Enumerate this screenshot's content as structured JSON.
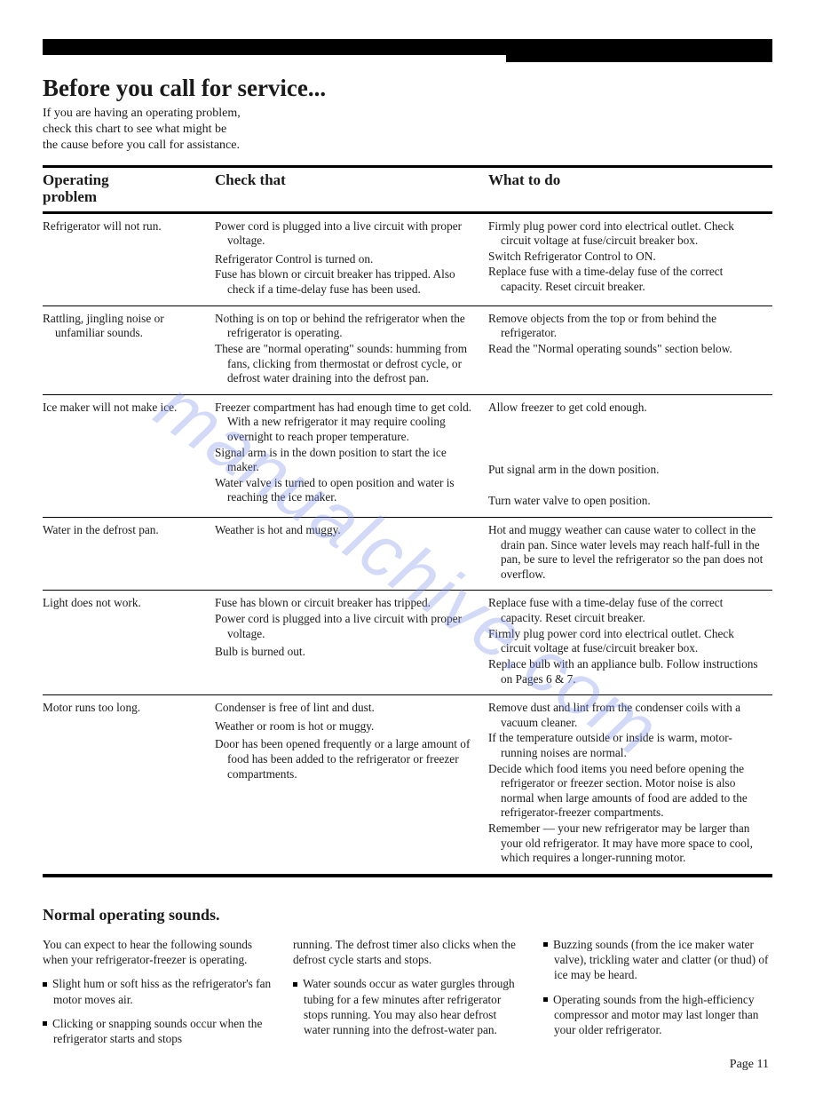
{
  "title": "Before you call for service...",
  "intro_lines": [
    "If you are having an operating problem,",
    "check this chart to see what might be",
    "the cause before you call for assistance."
  ],
  "headers": {
    "problem": "Operating\nproblem",
    "check": "Check that",
    "what": "What to do"
  },
  "rows": [
    {
      "problem": "Refrigerator will not run.",
      "checks": [
        "Power cord is plugged into a live circuit with proper voltage.",
        "Refrigerator Control is turned on.",
        "Fuse has blown or circuit breaker has tripped.  Also check if a time-delay fuse has been used."
      ],
      "whats": [
        "Firmly plug power cord into electrical outlet. Check circuit voltage at fuse/circuit breaker box.",
        "Switch Refrigerator Control to ON.",
        "Replace fuse with a time-delay fuse of the correct capacity.  Reset circuit breaker."
      ]
    },
    {
      "problem": "Rattling, jingling noise or unfamiliar sounds.",
      "checks": [
        "Nothing is on top or behind the refrigerator when the refrigerator is operating.",
        "These are \"normal operating\" sounds: humming from fans, clicking from thermostat or defrost cycle, or defrost water draining into the defrost pan."
      ],
      "whats": [
        "Remove objects from the top or from behind the refrigerator.",
        "Read the \"Normal operating sounds\" section below."
      ]
    },
    {
      "problem": "Ice maker will not make ice.",
      "checks": [
        "Freezer compartment has had enough time to get cold.  With a new refrigerator it may require cooling overnight to reach proper temperature.",
        "Signal arm is in the down position to start the ice maker.",
        "Water valve is turned to open position and water is reaching the ice maker."
      ],
      "whats": [
        "Allow freezer to get cold enough.",
        "",
        "",
        "",
        "Put signal arm in the down position.",
        "",
        "Turn water valve to open position."
      ]
    },
    {
      "problem": "Water in the defrost pan.",
      "checks": [
        "Weather is hot and muggy."
      ],
      "whats": [
        "Hot and muggy weather can cause water to collect in the drain pan. Since water levels may reach half-full in the pan, be sure to level the refrigerator so the pan does not overflow."
      ]
    },
    {
      "problem": "Light does not work.",
      "checks": [
        "Fuse has blown or circuit breaker has tripped.",
        "Power cord is plugged into a live circuit with proper voltage.",
        "Bulb is burned out."
      ],
      "whats": [
        "Replace fuse with a time-delay fuse of the correct capacity. Reset circuit breaker.",
        "Firmly plug power cord into electrical outlet. Check circuit voltage at fuse/circuit breaker box.",
        "Replace bulb with an appliance bulb.  Follow instructions on Pages 6 & 7."
      ]
    },
    {
      "problem": "Motor runs too long.",
      "checks": [
        "Condenser is free of lint and dust.",
        "Weather or room is hot or muggy.",
        "Door has been opened frequently or a large amount of food has been added to the refrigerator or freezer compartments."
      ],
      "whats": [
        "Remove dust and lint from the condenser coils with a vacuum cleaner.",
        "If the temperature outside or inside is warm, motor-running noises are normal.",
        "Decide which food items you need before opening the refrigerator or freezer section. Motor noise is also normal when large amounts of food are added to the refrigerator-freezer compartments.",
        "Remember — your new refrigerator may be larger than your old refrigerator. It may have more space to cool, which requires a longer-running motor."
      ]
    }
  ],
  "sounds": {
    "title": "Normal operating sounds.",
    "col1_intro": "You can expect to hear the following sounds when your refrigerator-freezer is operating.",
    "col1_b1": "Slight hum or soft hiss as the refrigerator's fan motor moves air.",
    "col1_b2": "Clicking or snapping sounds occur when the refrigerator starts and stops",
    "col2_cont": "running.  The defrost timer also clicks when the defrost cycle starts and stops.",
    "col2_b1": "Water sounds occur as water gurgles through tubing for a few minutes after refrigerator stops running.  You may also hear defrost water running into the defrost-water pan.",
    "col3_b1": "Buzzing sounds (from the ice maker water valve), trickling water and clatter (or thud) of ice may be heard.",
    "col3_b2": "Operating sounds from the high-efficiency compressor and motor may last longer than your older refrigerator."
  },
  "page_number": "Page 11",
  "watermark": "manualchive.com"
}
